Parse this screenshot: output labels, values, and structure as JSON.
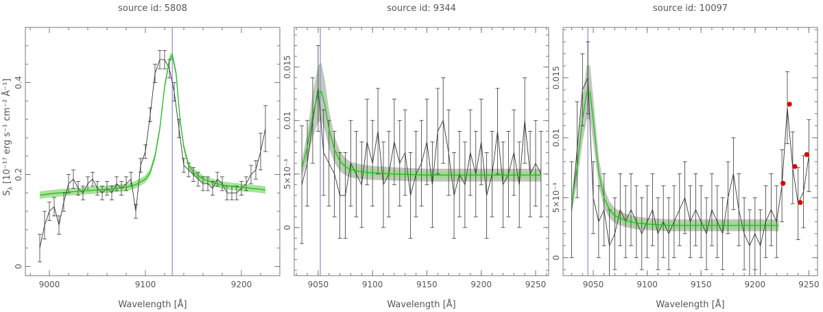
{
  "figure": {
    "ylabel_main": "S",
    "ylabel_sub": "λ",
    "ylabel_units": "[10⁻¹⁷ erg s⁻¹ cm⁻² Å⁻¹]"
  },
  "colors": {
    "data_line": "#333333",
    "model_line": "#22bb22",
    "model_band": "#99dd88",
    "uncertainty_band": "#a8b8a0",
    "line_marker": "#8888dd",
    "flagged_point": "#dd0000",
    "frame": "#777777"
  },
  "chart_data": [
    {
      "type": "line",
      "title": "source id: 5808",
      "xlabel": "Wavelength [Å]",
      "ylabel": "S λ [10⁻¹⁷ erg s⁻¹ cm⁻² Å⁻¹]",
      "xlim": [
        8975,
        9240
      ],
      "ylim": [
        -0.02,
        0.52
      ],
      "xticks": [
        9000,
        9100,
        9200
      ],
      "xtick_labels": [
        "9000",
        "9100",
        "9200"
      ],
      "yticks": [
        0,
        0.2,
        0.4
      ],
      "ytick_labels": [
        "0",
        "0.2",
        "0.4"
      ],
      "vline": 9128,
      "series": [
        {
          "role": "data",
          "x": [
            8990,
            8995,
            9000,
            9005,
            9010,
            9015,
            9020,
            9025,
            9030,
            9035,
            9040,
            9045,
            9050,
            9055,
            9060,
            9065,
            9070,
            9075,
            9080,
            9085,
            9090,
            9095,
            9100,
            9105,
            9110,
            9115,
            9120,
            9125,
            9130,
            9135,
            9140,
            9145,
            9150,
            9155,
            9160,
            9165,
            9170,
            9175,
            9180,
            9185,
            9190,
            9195,
            9200,
            9205,
            9210,
            9215,
            9220,
            9225
          ],
          "y": [
            0.04,
            0.09,
            0.12,
            0.13,
            0.09,
            0.14,
            0.18,
            0.19,
            0.17,
            0.16,
            0.18,
            0.19,
            0.17,
            0.16,
            0.17,
            0.16,
            0.18,
            0.17,
            0.18,
            0.19,
            0.12,
            0.22,
            0.25,
            0.33,
            0.42,
            0.45,
            0.45,
            0.43,
            0.38,
            0.3,
            0.22,
            0.21,
            0.2,
            0.19,
            0.18,
            0.18,
            0.17,
            0.19,
            0.18,
            0.16,
            0.16,
            0.16,
            0.17,
            0.18,
            0.2,
            0.21,
            0.25,
            0.3
          ],
          "yerr": [
            0.03,
            0.03,
            0.02,
            0.02,
            0.02,
            0.02,
            0.02,
            0.02,
            0.015,
            0.015,
            0.015,
            0.015,
            0.015,
            0.015,
            0.015,
            0.015,
            0.015,
            0.015,
            0.015,
            0.015,
            0.015,
            0.015,
            0.015,
            0.015,
            0.02,
            0.02,
            0.02,
            0.02,
            0.02,
            0.02,
            0.015,
            0.015,
            0.015,
            0.015,
            0.015,
            0.015,
            0.015,
            0.015,
            0.015,
            0.015,
            0.015,
            0.015,
            0.015,
            0.015,
            0.02,
            0.02,
            0.04,
            0.05
          ]
        },
        {
          "role": "model",
          "x": [
            8990,
            9000,
            9020,
            9040,
            9060,
            9080,
            9090,
            9100,
            9105,
            9110,
            9115,
            9120,
            9125,
            9128,
            9132,
            9136,
            9140,
            9145,
            9150,
            9160,
            9170,
            9180,
            9200,
            9220,
            9225
          ],
          "y": [
            0.155,
            0.158,
            0.162,
            0.165,
            0.168,
            0.172,
            0.178,
            0.19,
            0.205,
            0.24,
            0.3,
            0.39,
            0.45,
            0.46,
            0.42,
            0.32,
            0.26,
            0.22,
            0.205,
            0.19,
            0.183,
            0.177,
            0.172,
            0.168,
            0.166
          ]
        }
      ],
      "model_band_halfwidth": 0.008,
      "uncertainty_band_halfwidth": 0,
      "flagged_points": {
        "x": [],
        "y": []
      }
    },
    {
      "type": "line",
      "title": "source id: 9344",
      "xlabel": "Wavelength [Å]",
      "ylabel": "",
      "xlim": [
        9028,
        9262
      ],
      "ylim": [
        -0.0045,
        0.0187
      ],
      "xticks": [
        9050,
        9100,
        9150,
        9200,
        9250
      ],
      "xtick_labels": [
        "9050",
        "9100",
        "9150",
        "9200",
        "9250"
      ],
      "yticks": [
        0,
        0.005,
        0.01,
        0.015
      ],
      "ytick_labels": [
        "0",
        "5×10⁻³",
        "0.01",
        "0.015"
      ],
      "vline": 9052,
      "series": [
        {
          "role": "data",
          "x": [
            9035,
            9040,
            9045,
            9050,
            9055,
            9060,
            9065,
            9070,
            9075,
            9080,
            9085,
            9090,
            9095,
            9100,
            9105,
            9110,
            9115,
            9120,
            9125,
            9130,
            9135,
            9140,
            9145,
            9150,
            9155,
            9160,
            9165,
            9170,
            9175,
            9180,
            9185,
            9190,
            9195,
            9200,
            9205,
            9210,
            9215,
            9220,
            9225,
            9230,
            9235,
            9240,
            9245,
            9250,
            9255
          ],
          "y": [
            0.004,
            0.006,
            0.01,
            0.013,
            0.007,
            0.006,
            0.005,
            0.003,
            0.003,
            0.006,
            0.005,
            0.004,
            0.008,
            0.006,
            0.009,
            0.004,
            0.005,
            0.008,
            0.006,
            0.007,
            0.003,
            0.005,
            0.006,
            0.008,
            0.004,
            0.009,
            0.01,
            0.007,
            0.003,
            0.005,
            0.004,
            0.007,
            0.005,
            0.008,
            0.003,
            0.005,
            0.009,
            0.004,
            0.005,
            0.007,
            0.004,
            0.01,
            0.005,
            0.006,
            0.005
          ],
          "yerr": [
            0.0055,
            0.004,
            0.004,
            0.004,
            0.004,
            0.004,
            0.004,
            0.004,
            0.004,
            0.004,
            0.004,
            0.004,
            0.004,
            0.004,
            0.004,
            0.004,
            0.004,
            0.004,
            0.004,
            0.004,
            0.004,
            0.004,
            0.004,
            0.004,
            0.004,
            0.004,
            0.004,
            0.004,
            0.004,
            0.004,
            0.004,
            0.004,
            0.004,
            0.004,
            0.004,
            0.004,
            0.004,
            0.004,
            0.004,
            0.004,
            0.004,
            0.004,
            0.004,
            0.004,
            0.004
          ]
        },
        {
          "role": "model",
          "x": [
            9035,
            9040,
            9045,
            9050,
            9053,
            9056,
            9060,
            9065,
            9070,
            9075,
            9080,
            9090,
            9100,
            9120,
            9150,
            9200,
            9255
          ],
          "y": [
            0.0055,
            0.0075,
            0.0105,
            0.0125,
            0.0127,
            0.0115,
            0.0092,
            0.0073,
            0.0062,
            0.0057,
            0.0054,
            0.0052,
            0.0051,
            0.005,
            0.0049,
            0.0049,
            0.0049
          ]
        }
      ],
      "model_band_halfwidth": 0.0003,
      "uncertainty_band_halfwidth": 0.0006,
      "flagged_points": {
        "x": [],
        "y": []
      }
    },
    {
      "type": "line",
      "title": "source id: 10097",
      "xlabel": "Wavelength [Å]",
      "ylabel": "",
      "xlim": [
        9022,
        9258
      ],
      "ylim": [
        -0.0015,
        0.0192
      ],
      "xticks": [
        9050,
        9100,
        9150,
        9200,
        9250
      ],
      "xtick_labels": [
        "9050",
        "9100",
        "9150",
        "9200",
        "9250"
      ],
      "yticks": [
        0,
        0.005,
        0.01,
        0.015
      ],
      "ytick_labels": [
        "0",
        "5×10⁻³",
        "0.01",
        "0.015"
      ],
      "vline": 9045,
      "series": [
        {
          "role": "data",
          "x": [
            9030,
            9035,
            9040,
            9045,
            9050,
            9055,
            9060,
            9065,
            9070,
            9075,
            9080,
            9085,
            9090,
            9095,
            9100,
            9105,
            9110,
            9115,
            9120,
            9125,
            9130,
            9135,
            9140,
            9145,
            9150,
            9155,
            9160,
            9165,
            9170,
            9175,
            9180,
            9185,
            9190,
            9195,
            9200,
            9205,
            9210,
            9215,
            9220,
            9225,
            9230,
            9235,
            9240,
            9245,
            9250
          ],
          "y": [
            0.004,
            0.009,
            0.014,
            0.015,
            0.005,
            0.003,
            0.004,
            0.001,
            0.002,
            0.004,
            0.003,
            0.004,
            0.003,
            0.002,
            0.003,
            0.004,
            0.002,
            0.003,
            0.002,
            0.003,
            0.004,
            0.005,
            0.003,
            0.004,
            0.003,
            0.002,
            0.004,
            0.003,
            0.002,
            0.005,
            0.007,
            0.004,
            0.002,
            0.001,
            0.002,
            0.001,
            0.003,
            0.004,
            0.003,
            0.006,
            0.0125,
            0.0075,
            0.0045,
            0.0055,
            0.0085
          ],
          "yerr": [
            0.004,
            0.004,
            0.003,
            0.003,
            0.003,
            0.003,
            0.003,
            0.003,
            0.003,
            0.003,
            0.003,
            0.003,
            0.003,
            0.003,
            0.003,
            0.003,
            0.003,
            0.003,
            0.003,
            0.003,
            0.003,
            0.003,
            0.003,
            0.003,
            0.003,
            0.003,
            0.003,
            0.003,
            0.003,
            0.003,
            0.003,
            0.003,
            0.003,
            0.003,
            0.003,
            0.003,
            0.003,
            0.003,
            0.003,
            0.003,
            0.003,
            0.003,
            0.003,
            0.003,
            0.003
          ]
        },
        {
          "role": "model",
          "x": [
            9030,
            9035,
            9040,
            9044,
            9047,
            9050,
            9055,
            9060,
            9065,
            9070,
            9080,
            9090,
            9100,
            9120,
            9150,
            9200,
            9222
          ],
          "y": [
            0.0045,
            0.0075,
            0.0115,
            0.0138,
            0.0138,
            0.0115,
            0.0072,
            0.005,
            0.004,
            0.0035,
            0.0031,
            0.0029,
            0.0028,
            0.0027,
            0.0027,
            0.0027,
            0.0027
          ]
        }
      ],
      "model_band_halfwidth": 0.0003,
      "uncertainty_band_halfwidth": 0.0005,
      "flagged_points": {
        "x": [
          9226,
          9232,
          9237,
          9242,
          9248
        ],
        "y": [
          0.0062,
          0.0128,
          0.0076,
          0.0046,
          0.0086
        ]
      }
    }
  ]
}
